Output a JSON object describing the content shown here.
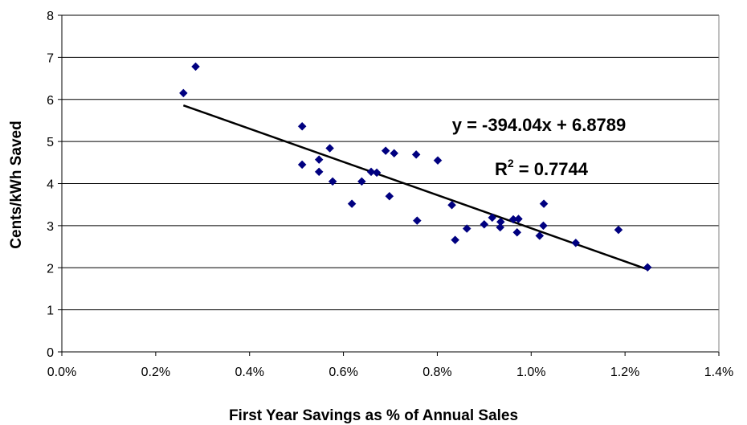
{
  "chart_data": {
    "type": "scatter",
    "xlabel": "First Year Savings as % of Annual Sales",
    "ylabel": "Cents/kWh Saved",
    "xlim": [
      0,
      0.014
    ],
    "ylim": [
      0,
      8
    ],
    "x_ticks": [
      0,
      0.002,
      0.004,
      0.006,
      0.008,
      0.01,
      0.012,
      0.014
    ],
    "x_tick_labels": [
      "0.0%",
      "0.2%",
      "0.4%",
      "0.6%",
      "0.8%",
      "1.0%",
      "1.2%",
      "1.4%"
    ],
    "y_ticks": [
      0,
      1,
      2,
      3,
      4,
      5,
      6,
      7,
      8
    ],
    "y_tick_labels": [
      "0",
      "1",
      "2",
      "3",
      "4",
      "5",
      "6",
      "7",
      "8"
    ],
    "grid": "horizontal",
    "legend": "none",
    "marker_color": "#000080",
    "series": [
      {
        "marker": "diamond",
        "points": [
          [
            0.00259,
            6.15
          ],
          [
            0.00285,
            6.78
          ],
          [
            0.00512,
            5.36
          ],
          [
            0.00512,
            4.45
          ],
          [
            0.00548,
            4.57
          ],
          [
            0.00548,
            4.28
          ],
          [
            0.00571,
            4.84
          ],
          [
            0.00577,
            4.05
          ],
          [
            0.00618,
            3.52
          ],
          [
            0.00639,
            4.05
          ],
          [
            0.00659,
            4.28
          ],
          [
            0.00671,
            4.26
          ],
          [
            0.0069,
            4.78
          ],
          [
            0.00698,
            3.7
          ],
          [
            0.00708,
            4.72
          ],
          [
            0.00755,
            4.69
          ],
          [
            0.00757,
            3.12
          ],
          [
            0.00801,
            4.55
          ],
          [
            0.00831,
            3.49
          ],
          [
            0.00838,
            2.66
          ],
          [
            0.00863,
            2.93
          ],
          [
            0.009,
            3.03
          ],
          [
            0.00917,
            3.19
          ],
          [
            0.00934,
            2.96
          ],
          [
            0.00935,
            3.09
          ],
          [
            0.00962,
            3.15
          ],
          [
            0.0097,
            2.84
          ],
          [
            0.00973,
            3.16
          ],
          [
            0.01018,
            2.76
          ],
          [
            0.01026,
            3.0
          ],
          [
            0.01027,
            3.52
          ],
          [
            0.01095,
            2.59
          ],
          [
            0.01186,
            2.9
          ],
          [
            0.01248,
            2.01
          ]
        ]
      }
    ],
    "trendline": {
      "type": "linear",
      "slope": -394.04,
      "intercept": 6.8789,
      "x_start": 0.00259,
      "x_end": 0.01248,
      "equation_label": "y = -394.04x + 6.8789",
      "r_squared_prefix": "R",
      "r_squared_exponent": "2",
      "r_squared_suffix": " = 0.7744"
    }
  }
}
